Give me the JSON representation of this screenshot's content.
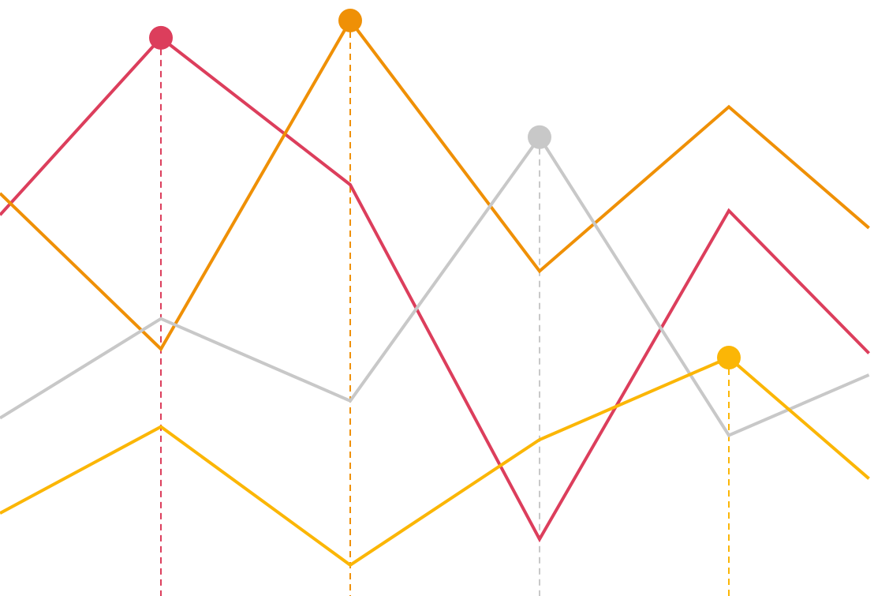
{
  "chart_data": {
    "type": "line",
    "title": "",
    "xlabel": "",
    "ylabel": "",
    "x": [
      -0.85,
      0,
      1,
      2,
      3,
      4,
      4.75
    ],
    "xlim": [
      -0.85,
      4.75
    ],
    "ylim": [
      0,
      100
    ],
    "grid": false,
    "legend": "none",
    "series": [
      {
        "color": "#dc3e5c",
        "values": [
          76.5,
          97,
          80,
          39,
          77,
          60.5
        ],
        "x": [
          -0.85,
          0,
          1,
          2,
          3,
          3.74
        ],
        "peak_index": 1
      },
      {
        "color": "#ef9006",
        "values": [
          79,
          61,
          99,
          70,
          89,
          75
        ],
        "x": [
          -0.85,
          0,
          1,
          2,
          3,
          3.74
        ],
        "peak_index": 2
      },
      {
        "color": "#c8c8c8",
        "values": [
          53,
          64.5,
          55,
          85.5,
          51,
          58
        ],
        "x": [
          -0.85,
          0,
          1,
          2,
          3,
          3.74
        ],
        "peak_index": 3
      },
      {
        "color": "#fbb606",
        "values": [
          42,
          52,
          36,
          50.5,
          60,
          46
        ],
        "x": [
          -0.85,
          0,
          1,
          2,
          3,
          3.74
        ],
        "peak_index": 4
      }
    ]
  }
}
